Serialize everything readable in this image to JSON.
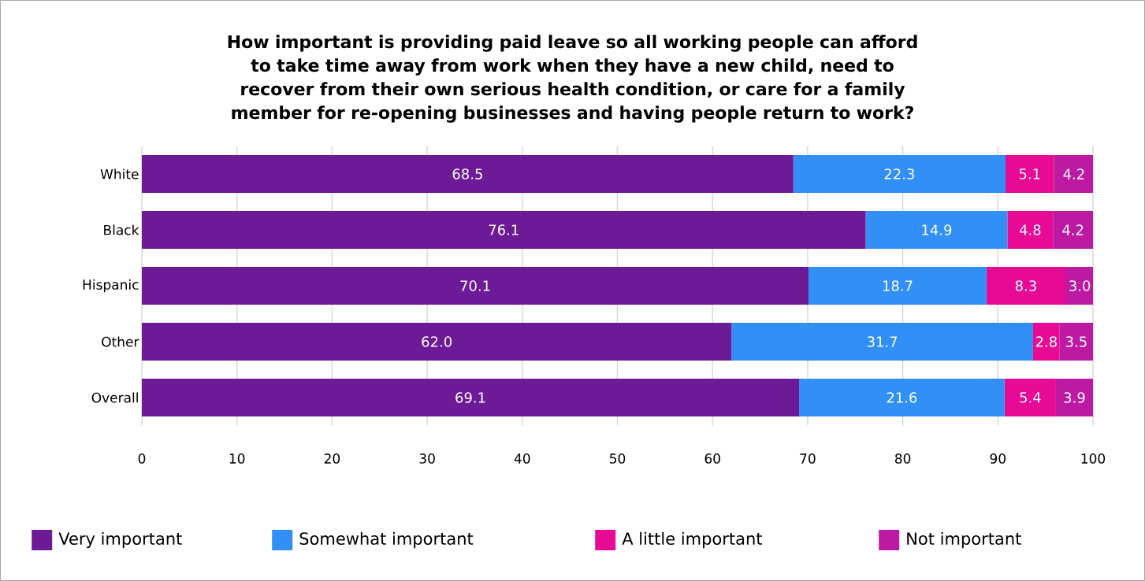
{
  "chart_data": {
    "type": "bar",
    "orientation": "horizontal",
    "stacked": true,
    "title": "How important is providing paid leave so all working people can afford to take time away from work when they have a new child, need to recover from their own serious health condition, or care for a family member for re-opening businesses and having people return to work?",
    "categories": [
      "White",
      "Black",
      "Hispanic",
      "Other",
      "Overall"
    ],
    "series": [
      {
        "name": "Very important",
        "color": "#6d1a96",
        "values": [
          68.5,
          76.1,
          70.1,
          62.0,
          69.1
        ],
        "value_labels": [
          "68.5",
          "76.1",
          "70.1",
          "62.0",
          "69.1"
        ]
      },
      {
        "name": "Somewhat important",
        "color": "#318ff5",
        "values": [
          22.3,
          14.9,
          18.7,
          31.7,
          21.6
        ],
        "value_labels": [
          "22.3",
          "14.9",
          "18.7",
          "31.7",
          "21.6"
        ]
      },
      {
        "name": "A little important",
        "color": "#e60a94",
        "values": [
          5.1,
          4.8,
          8.3,
          2.8,
          5.4
        ],
        "value_labels": [
          "5.1",
          "4.8",
          "8.3",
          "2.8",
          "5.4"
        ]
      },
      {
        "name": "Not important",
        "color": "#bd19a3",
        "values": [
          4.2,
          4.2,
          3.0,
          3.5,
          3.9
        ],
        "value_labels": [
          "4.2",
          "4.2",
          "3.0",
          "3.5",
          "3.9"
        ]
      }
    ],
    "xlim": [
      0,
      100
    ],
    "xticks": [
      0,
      10,
      20,
      30,
      40,
      50,
      60,
      70,
      80,
      90,
      100
    ],
    "grid": "x",
    "legend": "bottom"
  }
}
